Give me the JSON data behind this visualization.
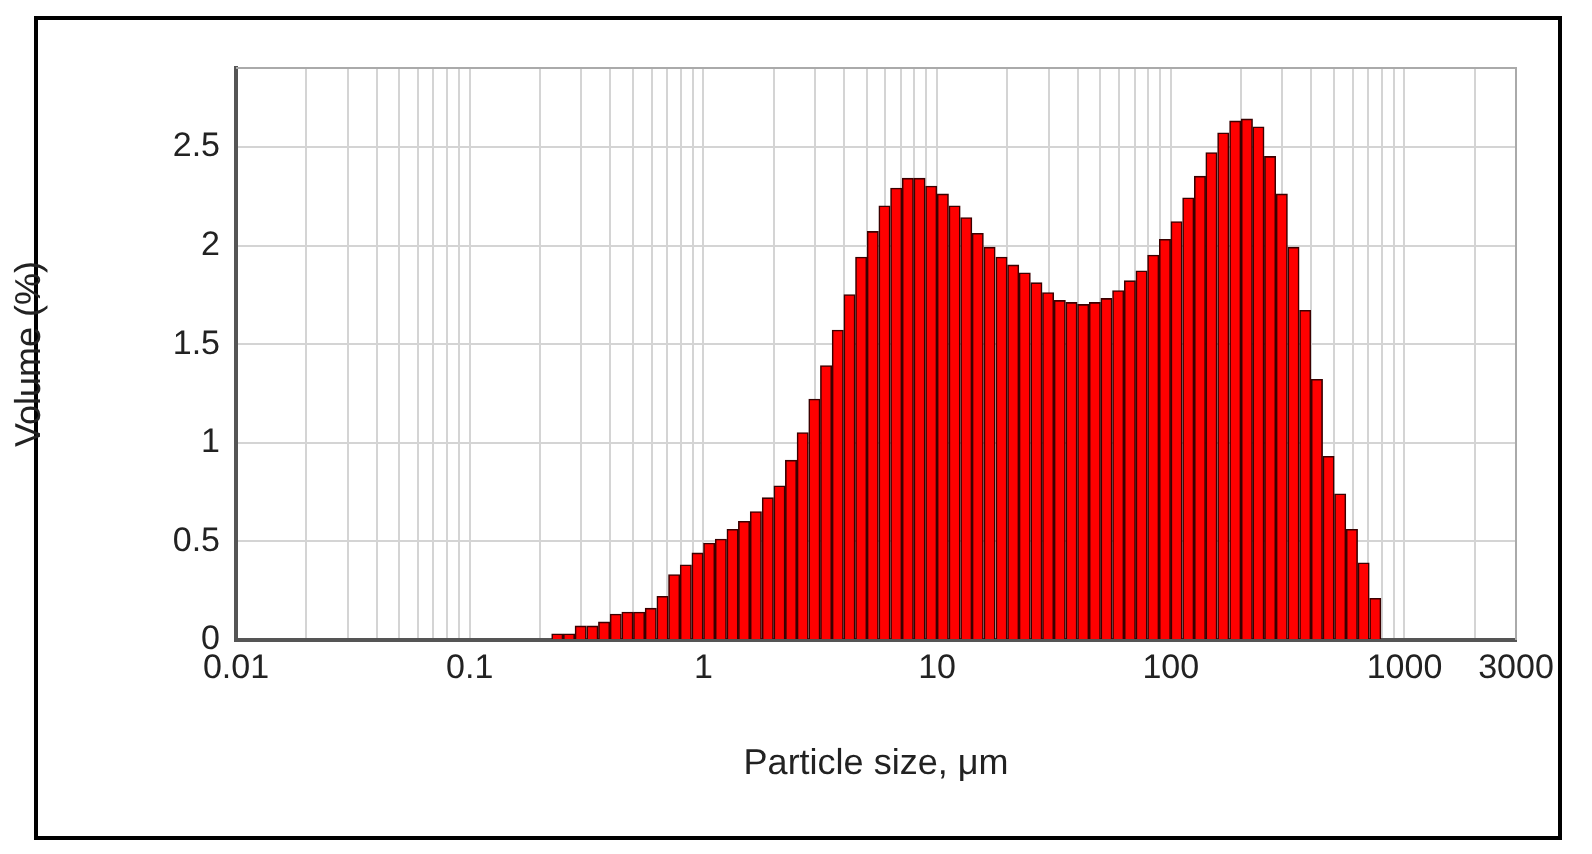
{
  "chart_data": {
    "type": "histogram",
    "xlabel": "Particle size, μm",
    "ylabel": "Volume (%)",
    "bins": [
      0.224,
      0.251,
      0.282,
      0.316,
      0.355,
      0.398,
      0.447,
      0.501,
      0.562,
      0.631,
      0.708,
      0.794,
      0.891,
      1,
      1.12,
      1.26,
      1.41,
      1.58,
      1.78,
      2,
      2.24,
      2.51,
      2.82,
      3.16,
      3.55,
      3.98,
      4.47,
      5.01,
      5.62,
      6.31,
      7.08,
      7.94,
      8.91,
      10,
      11.2,
      12.6,
      14.1,
      15.8,
      17.8,
      20,
      22.4,
      25.1,
      28.2,
      31.6,
      35.5,
      39.8,
      44.7,
      50.1,
      56.2,
      63.1,
      70.8,
      79.4,
      89.1,
      100,
      112,
      126,
      141,
      158,
      178,
      200,
      224,
      251,
      282,
      316,
      355,
      398,
      447,
      501,
      562,
      631,
      708,
      794
    ],
    "values": [
      0.03,
      0.03,
      0.07,
      0.07,
      0.09,
      0.13,
      0.14,
      0.14,
      0.16,
      0.22,
      0.33,
      0.38,
      0.44,
      0.49,
      0.51,
      0.56,
      0.6,
      0.65,
      0.72,
      0.78,
      0.91,
      1.05,
      1.22,
      1.39,
      1.57,
      1.75,
      1.94,
      2.07,
      2.2,
      2.29,
      2.34,
      2.34,
      2.3,
      2.26,
      2.2,
      2.14,
      2.06,
      1.99,
      1.94,
      1.9,
      1.86,
      1.81,
      1.76,
      1.72,
      1.71,
      1.7,
      1.71,
      1.73,
      1.77,
      1.82,
      1.87,
      1.95,
      2.03,
      2.12,
      2.24,
      2.35,
      2.47,
      2.57,
      2.63,
      2.64,
      2.6,
      2.45,
      2.26,
      1.99,
      1.67,
      1.32,
      0.93,
      0.74,
      0.56,
      0.39,
      0.21
    ],
    "color": "#ff0000",
    "log": "x",
    "xlim": [
      0.01,
      3000
    ],
    "xticks": [
      0.01,
      {
        "value": 0.02,
        "label": null
      },
      {
        "value": 0.03,
        "label": null
      },
      {
        "value": 0.04,
        "label": null
      },
      {
        "value": 0.05,
        "label": null
      },
      {
        "value": 0.06,
        "label": null
      },
      {
        "value": 0.07,
        "label": null
      },
      {
        "value": 0.08,
        "label": null
      },
      {
        "value": 0.09,
        "label": null
      },
      0.1,
      {
        "value": 0.2,
        "label": null
      },
      {
        "value": 0.3,
        "label": null
      },
      {
        "value": 0.4,
        "label": null
      },
      {
        "value": 0.5,
        "label": null
      },
      {
        "value": 0.6,
        "label": null
      },
      {
        "value": 0.7,
        "label": null
      },
      {
        "value": 0.8,
        "label": null
      },
      {
        "value": 0.9,
        "label": null
      },
      1,
      {
        "value": 2,
        "label": null
      },
      {
        "value": 3,
        "label": null
      },
      {
        "value": 4,
        "label": null
      },
      {
        "value": 5,
        "label": null
      },
      {
        "value": 6,
        "label": null
      },
      {
        "value": 7,
        "label": null
      },
      {
        "value": 8,
        "label": null
      },
      {
        "value": 9,
        "label": null
      },
      10,
      {
        "value": 20,
        "label": null
      },
      {
        "value": 30,
        "label": null
      },
      {
        "value": 40,
        "label": null
      },
      {
        "value": 50,
        "label": null
      },
      {
        "value": 60,
        "label": null
      },
      {
        "value": 70,
        "label": null
      },
      {
        "value": 80,
        "label": null
      },
      {
        "value": 90,
        "label": null
      },
      100,
      {
        "value": 200,
        "label": null
      },
      {
        "value": 300,
        "label": null
      },
      {
        "value": 400,
        "label": null
      },
      {
        "value": 500,
        "label": null
      },
      {
        "value": 600,
        "label": null
      },
      {
        "value": 700,
        "label": null
      },
      {
        "value": 800,
        "label": null
      },
      {
        "value": 900,
        "label": null
      },
      1000,
      {
        "value": 2000,
        "label": null
      },
      3000
    ],
    "ylim": [
      0,
      2.9
    ],
    "yticks": [
      0,
      0.5,
      1,
      1.5,
      2,
      2.5
    ],
    "grid": true,
    "legend": false
  }
}
